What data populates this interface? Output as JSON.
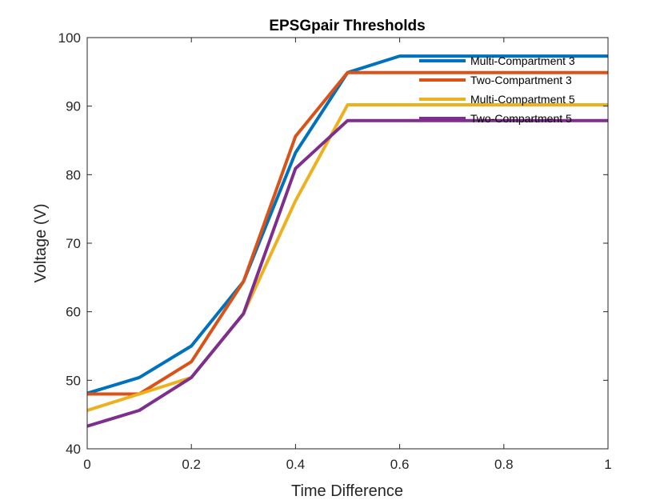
{
  "chart_data": {
    "type": "line",
    "title": "EPSGpair Thresholds",
    "xlabel": "Time Difference",
    "ylabel": "Voltage (V)",
    "xlim": [
      0,
      1
    ],
    "ylim": [
      40,
      100
    ],
    "xticks": [
      0,
      0.2,
      0.4,
      0.6,
      0.8,
      1
    ],
    "xtick_labels": [
      "0",
      "0.2",
      "0.4",
      "0.6",
      "0.8",
      "1"
    ],
    "yticks": [
      40,
      50,
      60,
      70,
      80,
      90,
      100
    ],
    "ytick_labels": [
      "40",
      "50",
      "60",
      "70",
      "80",
      "90",
      "100"
    ],
    "grid": false,
    "legend_position": "top-right",
    "x": [
      0,
      0.1,
      0.2,
      0.3,
      0.4,
      0.5,
      0.6,
      0.7,
      0.8,
      0.9,
      1.0
    ],
    "series": [
      {
        "name": "Multi-Compartment 3",
        "color": "#0072BD",
        "values": [
          48.1,
          50.4,
          55.0,
          64.4,
          83.2,
          94.9,
          97.3,
          97.3,
          97.3,
          97.3,
          97.3
        ]
      },
      {
        "name": "Two-Compartment 3",
        "color": "#D95319",
        "values": [
          48.0,
          48.0,
          52.7,
          64.4,
          85.6,
          94.9,
          94.9,
          94.9,
          94.9,
          94.9,
          94.9
        ]
      },
      {
        "name": "Multi-Compartment 5",
        "color": "#EDB120",
        "values": [
          45.6,
          48.0,
          50.4,
          59.7,
          76.2,
          90.2,
          90.2,
          90.2,
          90.2,
          90.2,
          90.2
        ]
      },
      {
        "name": "Two-Compartment 5",
        "color": "#7E2F8E",
        "values": [
          43.3,
          45.6,
          50.4,
          59.7,
          80.9,
          87.9,
          87.9,
          87.9,
          87.9,
          87.9,
          87.9
        ]
      }
    ]
  }
}
